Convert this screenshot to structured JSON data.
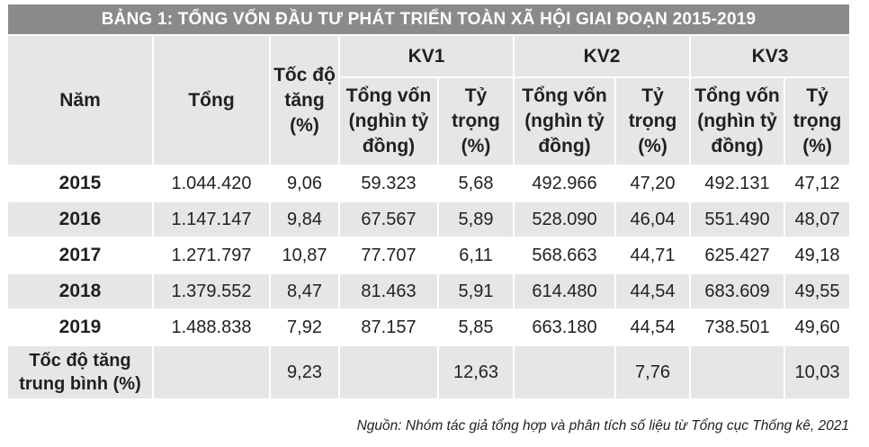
{
  "title": "BẢNG 1: TỔNG VỐN ĐẦU TƯ PHÁT TRIỂN TOÀN XÃ HỘI GIAI ĐOẠN 2015-2019",
  "headers": {
    "year": "Năm",
    "total": "Tổng",
    "growth": "Tốc độ tăng (%)",
    "kv1": "KV1",
    "kv2": "KV2",
    "kv3": "KV3",
    "kv1_capital": "Tổng vốn (nghìn tỷ đồng)",
    "kv1_share": "Tỷ trọng (%)",
    "kv2_capital": "Tổng vốn (nghìn tỷ đồng)",
    "kv2_share": "Tỷ trọng (%)",
    "kv3_capital": "Tổng vốn (nghìn tỷ đồng)",
    "kv3_share": "Tỷ trọng (%)"
  },
  "rows": [
    {
      "year": "2015",
      "total": "1.044.420",
      "growth": "9,06",
      "kv1_capital": "59.323",
      "kv1_share": "5,68",
      "kv2_capital": "492.966",
      "kv2_share": "47,20",
      "kv3_capital": "492.131",
      "kv3_share": "47,12"
    },
    {
      "year": "2016",
      "total": "1.147.147",
      "growth": "9,84",
      "kv1_capital": "67.567",
      "kv1_share": "5,89",
      "kv2_capital": "528.090",
      "kv2_share": "46,04",
      "kv3_capital": "551.490",
      "kv3_share": "48,07"
    },
    {
      "year": "2017",
      "total": "1.271.797",
      "growth": "10,87",
      "kv1_capital": "77.707",
      "kv1_share": "6,11",
      "kv2_capital": "568.663",
      "kv2_share": "44,71",
      "kv3_capital": "625.427",
      "kv3_share": "49,18"
    },
    {
      "year": "2018",
      "total": "1.379.552",
      "growth": "8,47",
      "kv1_capital": "81.463",
      "kv1_share": "5,91",
      "kv2_capital": "614.480",
      "kv2_share": "44,54",
      "kv3_capital": "683.609",
      "kv3_share": "49,55"
    },
    {
      "year": "2019",
      "total": "1.488.838",
      "growth": "7,92",
      "kv1_capital": "87.157",
      "kv1_share": "5,85",
      "kv2_capital": "663.180",
      "kv2_share": "44,54",
      "kv3_capital": "738.501",
      "kv3_share": "49,60"
    }
  ],
  "average": {
    "label": "Tốc độ tăng trung bình (%)",
    "growth": "9,23",
    "kv1_share": "12,63",
    "kv2_share": "7,76",
    "kv3_share": "10,03"
  },
  "source": "Nguồn: Nhóm tác giả tổng hợp và phân tích số liệu từ Tổng cục Thống kê, 2021"
}
